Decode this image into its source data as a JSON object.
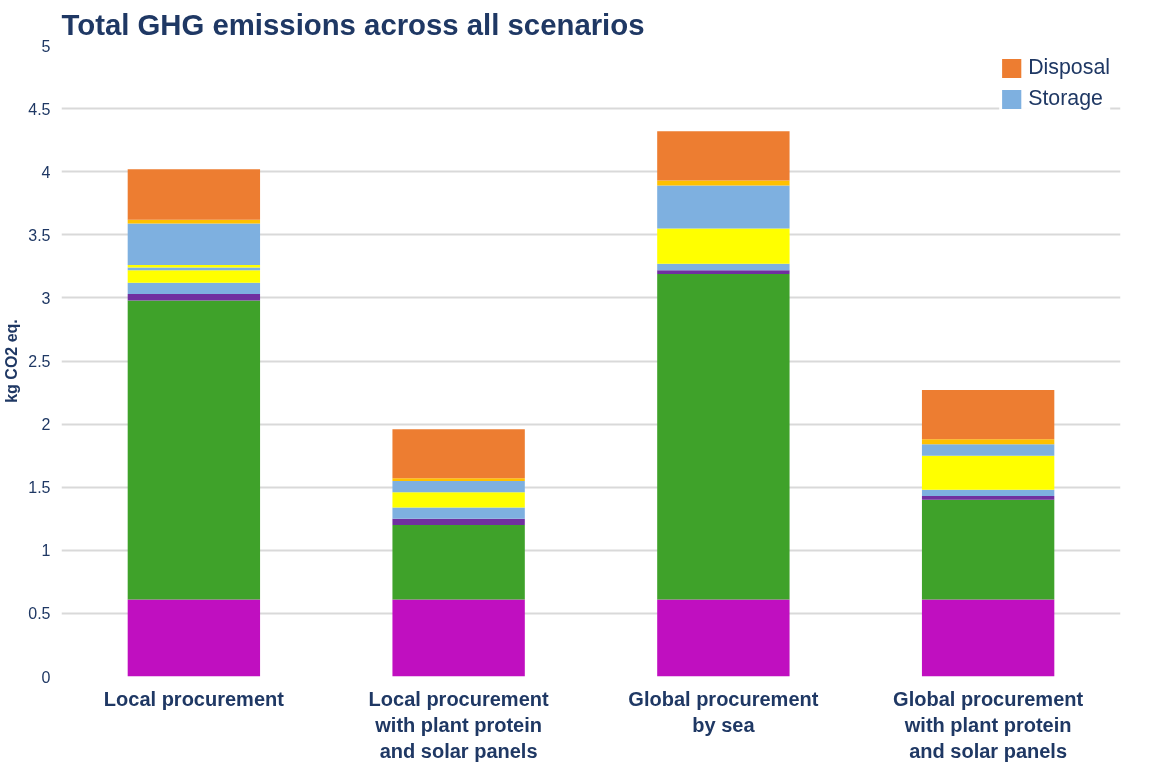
{
  "chart_data": {
    "type": "bar",
    "stacked": true,
    "title": "Total GHG emissions across all scenarios",
    "ylabel": "kg CO2 eq.",
    "categories": [
      "Local procurement",
      "Local procurement\nwith plant protein\nand solar panels",
      "Global procurement\nby sea",
      "Global procurement\nwith plant protein\nand solar panels"
    ],
    "series": [
      {
        "color": "#c00fc0",
        "values": [
          0.61,
          0.61,
          0.61,
          0.61
        ]
      },
      {
        "color": "#3fa22a",
        "values": [
          2.37,
          0.59,
          2.58,
          0.79
        ]
      },
      {
        "color": "#7030a0",
        "values": [
          0.05,
          0.05,
          0.03,
          0.03
        ]
      },
      {
        "color": "#7eb0e0",
        "values": [
          0.09,
          0.09,
          0.05,
          0.05
        ]
      },
      {
        "color": "#ffff00",
        "values": [
          0.1,
          0.12,
          0.28,
          0.27
        ]
      },
      {
        "color": "#7eb0e0",
        "values": [
          0.02,
          0,
          0,
          0
        ]
      },
      {
        "color": "#ffff00",
        "values": [
          0.02,
          0,
          0,
          0
        ]
      },
      {
        "name": "Storage",
        "color": "#7eb0e0",
        "values": [
          0.33,
          0.09,
          0.34,
          0.09
        ]
      },
      {
        "color": "#ffc000",
        "values": [
          0.03,
          0.02,
          0.04,
          0.04
        ]
      },
      {
        "name": "Disposal",
        "color": "#ed7d31",
        "values": [
          0.4,
          0.39,
          0.39,
          0.39
        ]
      }
    ],
    "ylim": [
      0,
      5
    ],
    "yticks": [
      0,
      0.5,
      1,
      1.5,
      2,
      2.5,
      3,
      3.5,
      4,
      4.5,
      5
    ],
    "grid": "y",
    "legend": "top right"
  }
}
